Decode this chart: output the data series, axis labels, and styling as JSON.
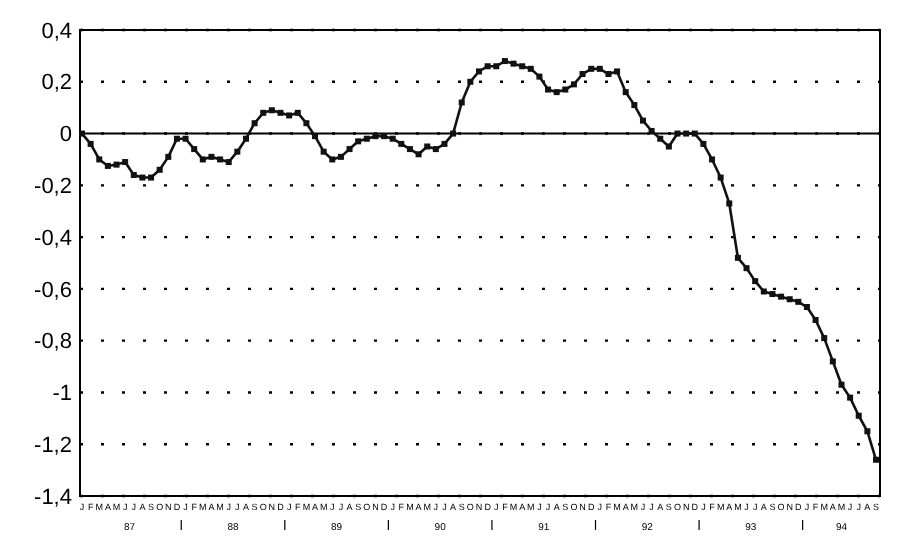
{
  "chart_data": {
    "type": "line",
    "categories": [
      "J",
      "F",
      "M",
      "A",
      "M",
      "J",
      "J",
      "A",
      "S",
      "O",
      "N",
      "D",
      "J",
      "F",
      "M",
      "A",
      "M",
      "J",
      "J",
      "A",
      "S",
      "O",
      "N",
      "D",
      "J",
      "F",
      "M",
      "A",
      "M",
      "J",
      "J",
      "A",
      "S",
      "O",
      "N",
      "D",
      "J",
      "F",
      "M",
      "A",
      "M",
      "J",
      "J",
      "A",
      "S",
      "O",
      "N",
      "D",
      "J",
      "F",
      "M",
      "A",
      "M",
      "J",
      "J",
      "A",
      "S",
      "O",
      "N",
      "D",
      "J",
      "F",
      "M",
      "A",
      "M",
      "J",
      "J",
      "A",
      "S",
      "O",
      "N",
      "D",
      "J",
      "F",
      "M",
      "A",
      "M",
      "J",
      "J",
      "A",
      "S",
      "O",
      "N",
      "D",
      "J",
      "F",
      "M",
      "A",
      "M",
      "J",
      "J",
      "A",
      "S"
    ],
    "series": [
      {
        "color": "#111111",
        "values": [
          0,
          -0.04,
          -0.1,
          -0.125,
          -0.12,
          -0.11,
          -0.16,
          -0.17,
          -0.17,
          -0.14,
          -0.09,
          -0.02,
          -0.02,
          -0.06,
          -0.1,
          -0.09,
          -0.1,
          -0.11,
          -0.07,
          -0.02,
          0.04,
          0.08,
          0.09,
          0.08,
          0.07,
          0.08,
          0.04,
          -0.01,
          -0.07,
          -0.1,
          -0.09,
          -0.06,
          -0.03,
          -0.02,
          -0.01,
          -0.01,
          -0.02,
          -0.04,
          -0.06,
          -0.08,
          -0.05,
          -0.06,
          -0.04,
          0,
          0.12,
          0.2,
          0.24,
          0.26,
          0.26,
          0.28,
          0.27,
          0.26,
          0.25,
          0.22,
          0.17,
          0.16,
          0.17,
          0.19,
          0.23,
          0.25,
          0.25,
          0.23,
          0.24,
          0.16,
          0.11,
          0.05,
          0.01,
          -0.02,
          -0.05,
          0,
          0,
          0,
          -0.04,
          -0.1,
          -0.17,
          -0.27,
          -0.48,
          -0.52,
          -0.57,
          -0.61,
          -0.62,
          -0.63,
          -0.64,
          -0.65,
          -0.67,
          -0.72,
          -0.79,
          -0.88,
          -0.97,
          -1.02,
          -1.09,
          -1.15,
          -1.26
        ]
      }
    ],
    "ylim": [
      -1.4,
      0.4
    ],
    "yticks": [
      {
        "value": 0.4,
        "label": "0,4"
      },
      {
        "value": 0.2,
        "label": "0,2"
      },
      0,
      {
        "value": -0.2,
        "label": "-0,2"
      },
      {
        "value": -0.4,
        "label": "-0,4"
      },
      {
        "value": -0.6,
        "label": "-0,6"
      },
      {
        "value": -0.8,
        "label": "-0,8"
      },
      -1,
      {
        "value": -1.2,
        "label": "-1,2"
      },
      {
        "value": -1.4,
        "label": "-1,4"
      }
    ],
    "grid": "y",
    "marker": "square",
    "line_style": "solid",
    "ref_lines": [
      {
        "axis": "y",
        "value": 0,
        "color": "#000000"
      }
    ],
    "annotations": [
      "87",
      "88",
      "89",
      "90",
      "91",
      "92",
      "93",
      "94"
    ]
  }
}
